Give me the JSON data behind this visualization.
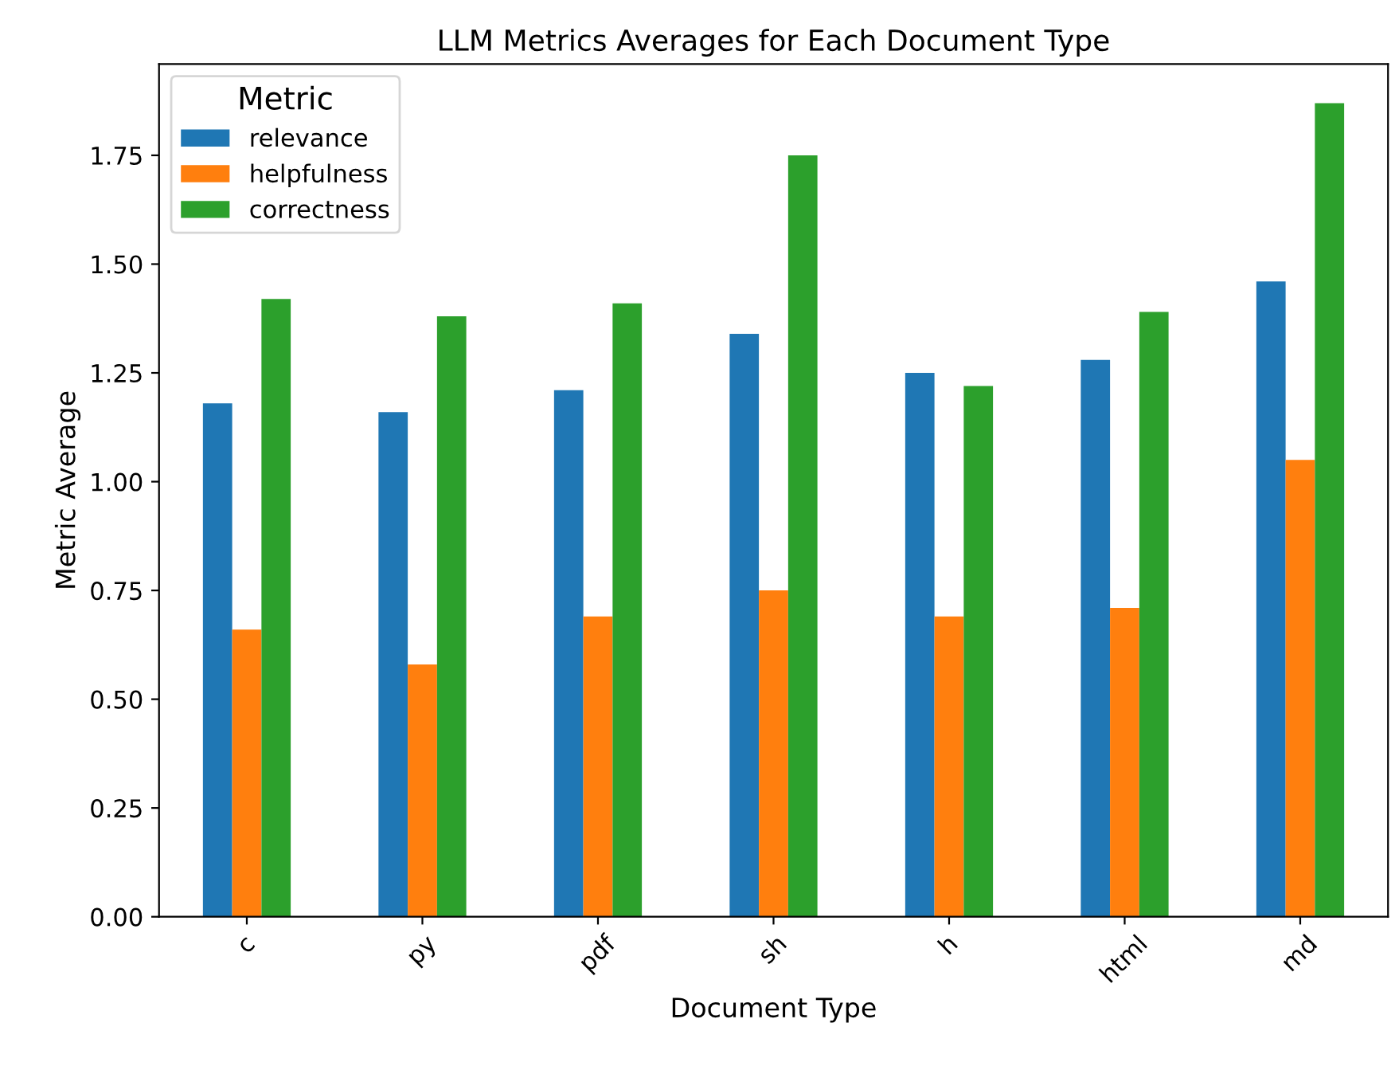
{
  "chart_data": {
    "type": "bar",
    "title": "LLM Metrics Averages for Each Document Type",
    "xlabel": "Document Type",
    "ylabel": "Metric Average",
    "legend_title": "Metric",
    "categories": [
      "c",
      "py",
      "pdf",
      "sh",
      "h",
      "html",
      "md"
    ],
    "series": [
      {
        "name": "relevance",
        "color": "#1f77b4",
        "values": [
          1.18,
          1.16,
          1.21,
          1.34,
          1.25,
          1.28,
          1.46
        ]
      },
      {
        "name": "helpfulness",
        "color": "#ff7f0e",
        "values": [
          0.66,
          0.58,
          0.69,
          0.75,
          0.69,
          0.71,
          1.05
        ]
      },
      {
        "name": "correctness",
        "color": "#2ca02c",
        "values": [
          1.42,
          1.38,
          1.41,
          1.75,
          1.22,
          1.39,
          1.87
        ]
      }
    ],
    "ylim": [
      0,
      1.96
    ],
    "yticks": [
      {
        "value": 0,
        "label": "0.00"
      },
      {
        "value": 0.25,
        "label": "0.25"
      },
      {
        "value": 0.5,
        "label": "0.50"
      },
      {
        "value": 0.75,
        "label": "0.75"
      },
      {
        "value": 1,
        "label": "1.00"
      },
      {
        "value": 1.25,
        "label": "1.25"
      },
      {
        "value": 1.5,
        "label": "1.50"
      },
      {
        "value": 1.75,
        "label": "1.75"
      }
    ],
    "legend": "top left",
    "grid": false
  }
}
